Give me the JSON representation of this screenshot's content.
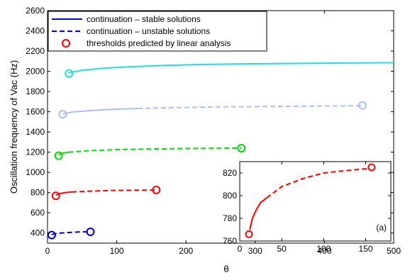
{
  "chart_data": [
    {
      "type": "line",
      "panel": "main",
      "xlabel": "θ",
      "ylabel": "Oscillation frequency of Vac (Hz)",
      "xlim": [
        0,
        500
      ],
      "ylim": [
        300,
        2600
      ],
      "xticks": [
        0,
        100,
        200,
        300,
        400,
        500
      ],
      "yticks": [
        400,
        600,
        800,
        1000,
        1200,
        1400,
        1600,
        1800,
        2000,
        2200,
        2400,
        2600
      ],
      "grid": false,
      "legend_position": "top-left",
      "legend": [
        {
          "label": "continuation – stable solutions",
          "style": "solid",
          "color": "#0000ff"
        },
        {
          "label": "continuation – unstable solutions",
          "style": "dashed",
          "color": "#0000ff"
        },
        {
          "label": "thresholds predicted by linear analysis",
          "style": "circle-marker",
          "color": "#ff0000"
        }
      ],
      "series": [
        {
          "color": "#0000cc",
          "segments": [
            {
              "style": "dashed",
              "x": [
                6,
                10,
                20,
                30,
                45,
                60
              ],
              "y": [
                385,
                392,
                400,
                405,
                410,
                412
              ]
            }
          ],
          "thresholds": [
            {
              "x": 6,
              "y": 380
            },
            {
              "x": 62,
              "y": 412
            }
          ]
        },
        {
          "color": "#ff0000",
          "segments": [
            {
              "style": "solid",
              "x": [
                12,
                18,
                25,
                35
              ],
              "y": [
                775,
                790,
                800,
                806
              ]
            },
            {
              "style": "dashed",
              "x": [
                35,
                60,
                90,
                120,
                155
              ],
              "y": [
                806,
                814,
                820,
                823,
                825
              ]
            }
          ],
          "thresholds": [
            {
              "x": 12,
              "y": 768
            },
            {
              "x": 157,
              "y": 826
            }
          ]
        },
        {
          "color": "#00dd00",
          "segments": [
            {
              "style": "solid",
              "x": [
                16,
                22,
                30
              ],
              "y": [
                1175,
                1190,
                1200
              ]
            },
            {
              "style": "dashed",
              "x": [
                30,
                60,
                100,
                150,
                200,
                250,
                280
              ],
              "y": [
                1200,
                1215,
                1225,
                1232,
                1236,
                1238,
                1240
              ]
            }
          ],
          "thresholds": [
            {
              "x": 16,
              "y": 1165
            },
            {
              "x": 280,
              "y": 1240
            }
          ]
        },
        {
          "color": "#aabff0",
          "segments": [
            {
              "style": "solid",
              "x": [
                22,
                40,
                70,
                100,
                130
              ],
              "y": [
                1580,
                1600,
                1615,
                1625,
                1632
              ]
            },
            {
              "style": "dashed",
              "x": [
                130,
                180,
                250,
                330,
                400,
                455
              ],
              "y": [
                1632,
                1640,
                1648,
                1653,
                1656,
                1660
              ]
            }
          ],
          "thresholds": [
            {
              "x": 22,
              "y": 1575
            },
            {
              "x": 455,
              "y": 1662
            }
          ]
        },
        {
          "color": "#22dddd",
          "segments": [
            {
              "style": "solid",
              "x": [
                30,
                50,
                80,
                120,
                170,
                230,
                300,
                380,
                450,
                500
              ],
              "y": [
                1985,
                2010,
                2030,
                2045,
                2058,
                2068,
                2075,
                2080,
                2083,
                2085
              ]
            }
          ],
          "thresholds": [
            {
              "x": 31,
              "y": 1978
            }
          ]
        }
      ]
    },
    {
      "type": "line",
      "panel": "inset",
      "annotation": "(a)",
      "xlim": [
        0,
        180
      ],
      "ylim": [
        760,
        830
      ],
      "xticks": [
        0,
        50,
        100,
        150
      ],
      "yticks": [
        760,
        780,
        800,
        820
      ],
      "series": [
        {
          "color": "#ff0000",
          "segments": [
            {
              "style": "solid",
              "x": [
                12,
                15,
                20,
                25,
                32
              ],
              "y": [
                770,
                780,
                788,
                794,
                798
              ]
            },
            {
              "style": "dashed",
              "x": [
                32,
                50,
                75,
                100,
                125,
                155
              ],
              "y": [
                798,
                808,
                815,
                820,
                822,
                824
              ]
            }
          ],
          "thresholds": [
            {
              "x": 11,
              "y": 766
            },
            {
              "x": 157,
              "y": 825
            }
          ]
        }
      ]
    }
  ]
}
